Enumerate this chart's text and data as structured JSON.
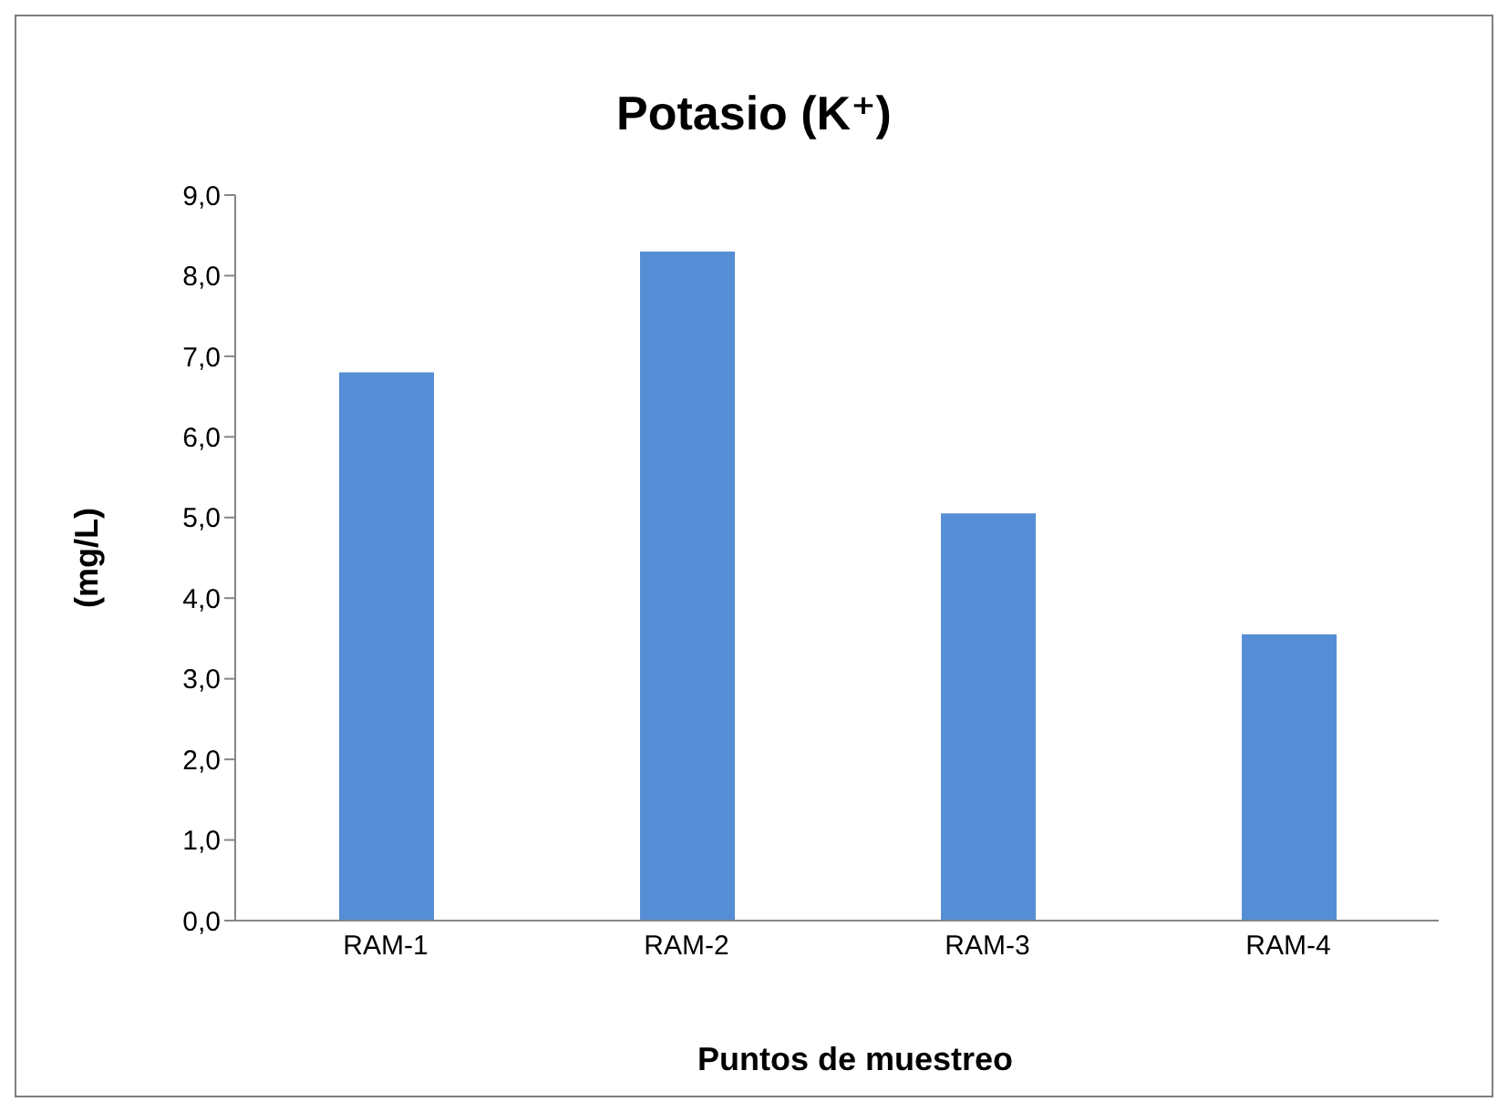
{
  "chart_data": {
    "type": "bar",
    "title": "Potasio (K⁺)",
    "xlabel": "Puntos de muestreo",
    "ylabel": "(mg/L)",
    "categories": [
      "RAM-1",
      "RAM-2",
      "RAM-3",
      "RAM-4"
    ],
    "values": [
      6.8,
      8.3,
      5.05,
      3.55
    ],
    "color": "#558ed5",
    "ylim": [
      0,
      9
    ],
    "yticks": [
      {
        "value": 0,
        "label": "0,0"
      },
      {
        "value": 1,
        "label": "1,0"
      },
      {
        "value": 2,
        "label": "2,0"
      },
      {
        "value": 3,
        "label": "3,0"
      },
      {
        "value": 4,
        "label": "4,0"
      },
      {
        "value": 5,
        "label": "5,0"
      },
      {
        "value": 6,
        "label": "6,0"
      },
      {
        "value": 7,
        "label": "7,0"
      },
      {
        "value": 8,
        "label": "8,0"
      },
      {
        "value": 9,
        "label": "9,0"
      }
    ],
    "grid": false,
    "legend": false
  }
}
